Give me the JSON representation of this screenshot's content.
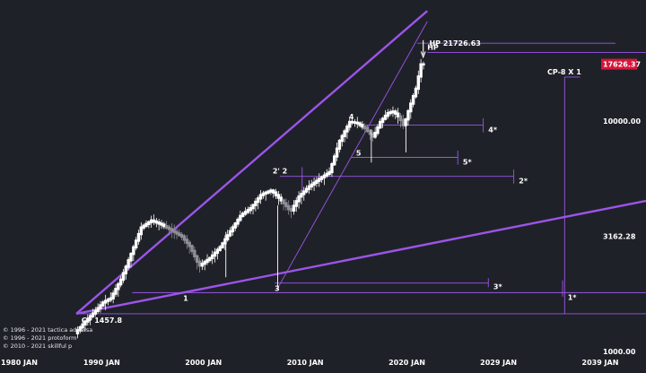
{
  "colors": {
    "background": "#1f2128",
    "line": "#9b55e8",
    "candle": "#ffffff",
    "candle_grey": "#8e8e96",
    "price_tag": "#d7153a",
    "text": "#ffffff"
  },
  "chart_data": {
    "type": "candlestick",
    "scale": "log",
    "x_ticks": [
      "1980 JAN",
      "1990 JAN",
      "2000 JAN",
      "2010 JAN",
      "2020 JAN",
      "2029 JAN",
      "2039 JAN"
    ],
    "y_ticks": [
      "10000.00",
      "3162.28",
      "1000.00"
    ],
    "ylim": [
      1000,
      32000
    ],
    "xlim": [
      1980,
      2043.5
    ],
    "current_price": "17626.37",
    "annotations": {
      "hp_label": "HP",
      "hp_target": "HP 21726.63",
      "cp_label": "CP 1457.8",
      "cp_proj": "CP-8 X 1",
      "p1": "1",
      "p2": "2' 2",
      "p3": "3",
      "p4": "4",
      "p5": "5",
      "t1": "1*",
      "t2": "2*",
      "t3": "3*",
      "t4": "4*",
      "t5": "5*"
    },
    "price_path": [
      [
        1987.5,
        1200
      ],
      [
        1988.5,
        1350
      ],
      [
        1989.5,
        1500
      ],
      [
        1990.3,
        1640
      ],
      [
        1991.0,
        1700
      ],
      [
        1992.0,
        2050
      ],
      [
        1993.0,
        2650
      ],
      [
        1994.0,
        3450
      ],
      [
        1995.0,
        3700
      ],
      [
        1996.0,
        3550
      ],
      [
        1997.0,
        3350
      ],
      [
        1998.0,
        3150
      ],
      [
        1998.8,
        2850
      ],
      [
        1999.7,
        2350
      ],
      [
        2000.8,
        2550
      ],
      [
        2001.8,
        2850
      ],
      [
        2002.8,
        3350
      ],
      [
        2003.8,
        3900
      ],
      [
        2004.8,
        4200
      ],
      [
        2005.8,
        4800
      ],
      [
        2006.8,
        5000
      ],
      [
        2007.8,
        4500
      ],
      [
        2008.7,
        4050
      ],
      [
        2009.5,
        4700
      ],
      [
        2010.5,
        5200
      ],
      [
        2011.5,
        5600
      ],
      [
        2012.5,
        6000
      ],
      [
        2013.5,
        8200
      ],
      [
        2014.5,
        9900
      ],
      [
        2015.2,
        9800
      ],
      [
        2016.0,
        9300
      ],
      [
        2016.8,
        8500
      ],
      [
        2017.5,
        9900
      ],
      [
        2018.2,
        10800
      ],
      [
        2018.8,
        11000
      ],
      [
        2019.4,
        10300
      ],
      [
        2019.8,
        9500
      ],
      [
        2020.3,
        11200
      ],
      [
        2021.0,
        13800
      ],
      [
        2021.5,
        17600
      ]
    ],
    "lower_trendline": [
      [
        1987.5,
        1457.8
      ],
      [
        2043.5,
        4500
      ]
    ],
    "upper_trendline": [
      [
        1987.5,
        1457.8
      ],
      [
        2022.0,
        30000
      ]
    ],
    "inner_trendline": [
      [
        2007.2,
        1850
      ],
      [
        2022.0,
        27000
      ]
    ],
    "levels": {
      "hp_target": 21726.63,
      "hp": 19800,
      "cp": 1457.8,
      "lvl1": 1800,
      "lvl3": 1980,
      "lvl2": 5750,
      "lvl5": 6950,
      "lvl4": 9600
    },
    "projection_x": 2035.5
  },
  "copyright": [
    "© 1996 - 2021 tactica adversa",
    "© 1996 - 2021 protoform",
    "© 2010 - 2021 skillful p"
  ]
}
